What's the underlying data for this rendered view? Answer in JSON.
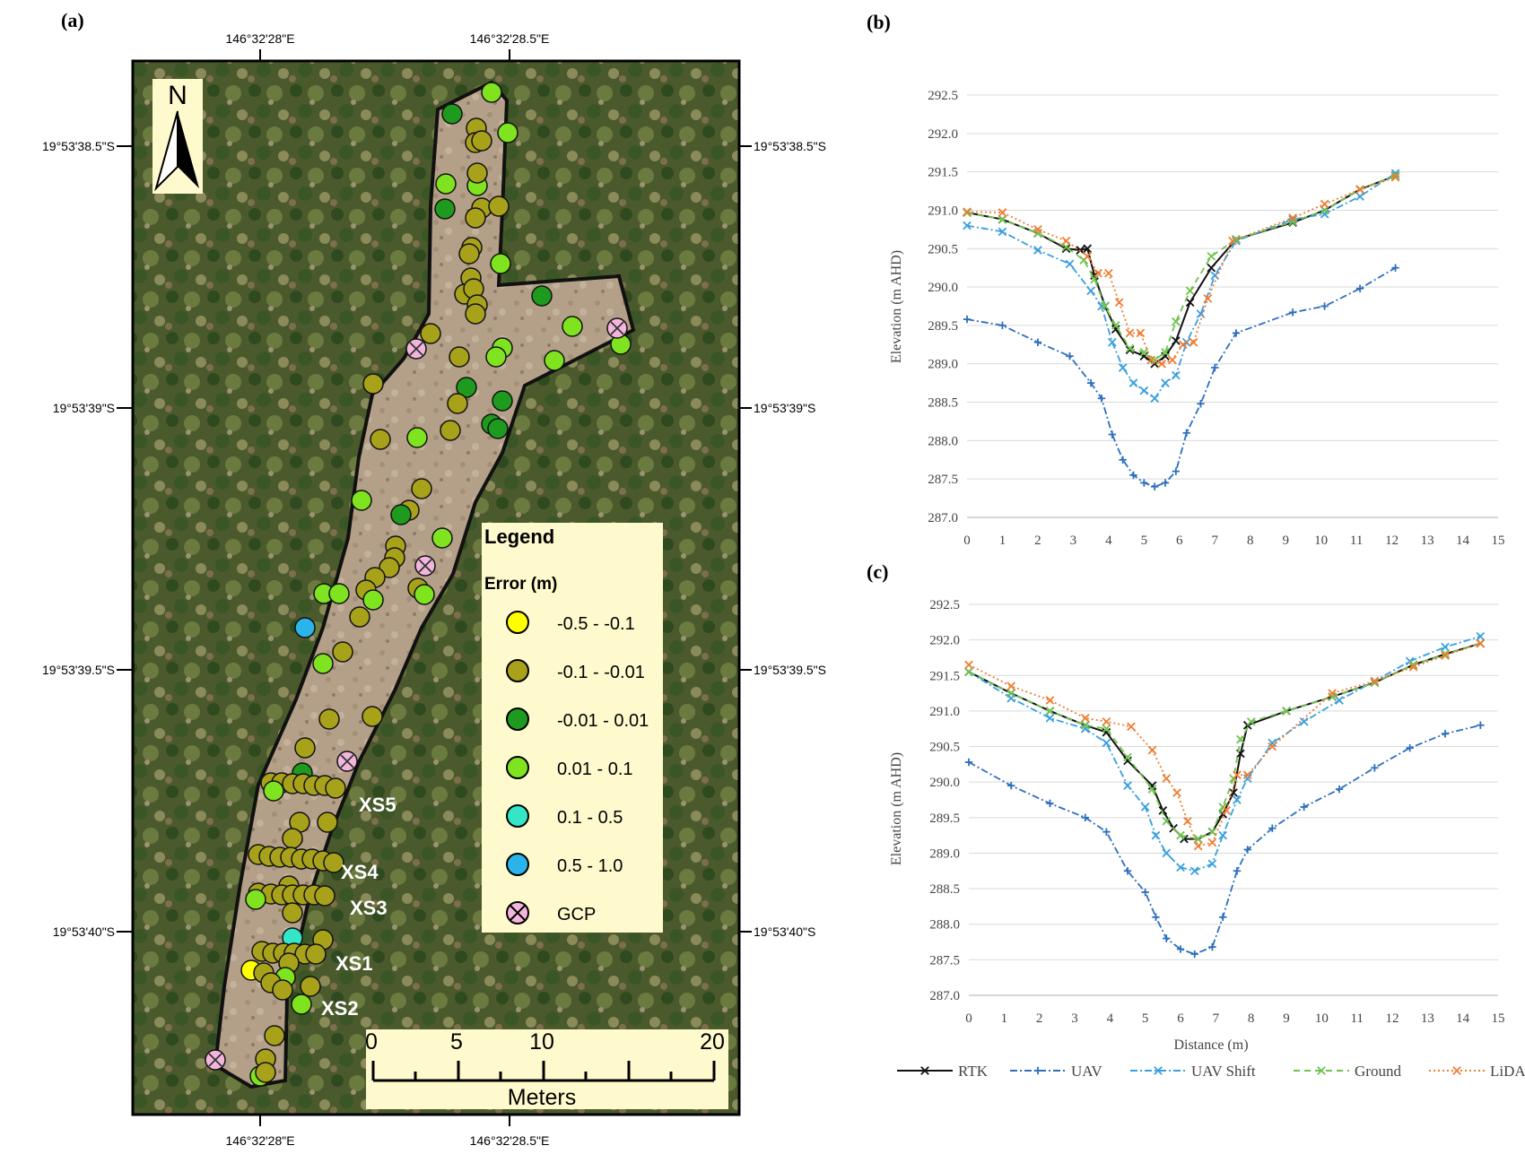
{
  "panels": {
    "a": "(a)",
    "b": "(b)",
    "c": "(c)"
  },
  "map": {
    "lon_labels": [
      "146°32'28\"E",
      "146°32'28.5\"E"
    ],
    "lat_labels": [
      "19°53'38.5\"S",
      "19°53'39\"S",
      "19°53'39.5\"S",
      "19°53'40\"S"
    ],
    "north": "N",
    "cross_sections": [
      "XS5",
      "XS4",
      "XS3",
      "XS1",
      "XS2"
    ],
    "legend": {
      "title": "Legend",
      "subtitle": "Error (m)",
      "items": [
        {
          "label": "-0.5 - -0.1",
          "color": "#ffff00"
        },
        {
          "label": "-0.1 - -0.01",
          "color": "#a8a21a"
        },
        {
          "label": "-0.01 - 0.01",
          "color": "#1e9a1e"
        },
        {
          "label": "0.01 - 0.1",
          "color": "#7fe320"
        },
        {
          "label": "0.1 - 0.5",
          "color": "#33e6c8"
        },
        {
          "label": "0.5 - 1.0",
          "color": "#2ab4ea"
        },
        {
          "label": "GCP",
          "color": "#f2b6dc"
        }
      ]
    },
    "scalebar": {
      "ticks": [
        "0",
        "5",
        "10",
        "20"
      ],
      "unit": "Meters"
    }
  },
  "series_legend": [
    "RTK",
    "UAV",
    "UAV Shift",
    "Ground",
    "LiDAR"
  ],
  "chart_data": [
    {
      "type": "line",
      "panel": "(b)",
      "ylabel": "Elevation (m AHD)",
      "xlabel": "",
      "ylim": [
        287.0,
        292.5
      ],
      "xlim": [
        0,
        15
      ],
      "yticks": [
        "287.0",
        "287.5",
        "288.0",
        "288.5",
        "289.0",
        "289.5",
        "290.0",
        "290.5",
        "291.0",
        "291.5",
        "292.0",
        "292.5"
      ],
      "xticks": [
        "0",
        "1",
        "2",
        "3",
        "4",
        "5",
        "6",
        "7",
        "8",
        "9",
        "10",
        "11",
        "12",
        "13",
        "14",
        "15"
      ],
      "grid": true,
      "series": [
        {
          "name": "RTK",
          "color": "#111111",
          "dash": "",
          "marker": "x",
          "x": [
            0,
            1,
            2,
            2.8,
            3.2,
            3.4,
            3.6,
            3.9,
            4.2,
            4.6,
            5.0,
            5.3,
            5.6,
            5.9,
            6.3,
            6.9,
            7.6,
            9.2,
            10.1,
            11.1,
            12.1
          ],
          "y": [
            290.97,
            290.88,
            290.7,
            290.5,
            290.48,
            290.5,
            290.15,
            289.75,
            289.45,
            289.18,
            289.1,
            289.0,
            289.1,
            289.3,
            289.8,
            290.25,
            290.62,
            290.84,
            291.0,
            291.27,
            291.45
          ]
        },
        {
          "name": "UAV",
          "color": "#2c6fbf",
          "dash": "8 3 2 3",
          "marker": "+",
          "x": [
            0,
            1,
            2,
            2.9,
            3.5,
            3.8,
            4.1,
            4.4,
            4.7,
            5.0,
            5.3,
            5.6,
            5.9,
            6.2,
            6.6,
            7.0,
            7.6,
            9.2,
            10.1,
            11.1,
            12.1
          ],
          "y": [
            289.58,
            289.5,
            289.28,
            289.1,
            288.75,
            288.55,
            288.08,
            287.75,
            287.55,
            287.45,
            287.4,
            287.45,
            287.6,
            288.1,
            288.48,
            288.95,
            289.4,
            289.67,
            289.75,
            289.98,
            290.25
          ]
        },
        {
          "name": "UAV Shift",
          "color": "#3a9fdf",
          "dash": "8 3 2 3",
          "marker": "x",
          "x": [
            0,
            1,
            2,
            2.9,
            3.5,
            3.8,
            4.1,
            4.4,
            4.7,
            5.0,
            5.3,
            5.6,
            5.9,
            6.2,
            6.6,
            7.0,
            7.6,
            9.2,
            10.1,
            11.1,
            12.1
          ],
          "y": [
            290.8,
            290.72,
            290.48,
            290.3,
            289.95,
            289.75,
            289.28,
            288.95,
            288.75,
            288.65,
            288.55,
            288.75,
            288.85,
            289.28,
            289.65,
            290.15,
            290.6,
            290.88,
            290.95,
            291.18,
            291.48
          ]
        },
        {
          "name": "Ground",
          "color": "#6fc34f",
          "dash": "7 5",
          "marker": "x",
          "x": [
            0,
            1,
            2,
            2.8,
            3.3,
            3.6,
            3.9,
            4.2,
            4.6,
            5.0,
            5.3,
            5.6,
            5.9,
            6.3,
            6.9,
            7.6,
            9.2,
            10.1,
            11.1,
            12.1
          ],
          "y": [
            290.97,
            290.88,
            290.7,
            290.52,
            290.35,
            290.1,
            289.75,
            289.5,
            289.2,
            289.15,
            289.05,
            289.15,
            289.55,
            289.95,
            290.4,
            290.62,
            290.85,
            291.0,
            291.27,
            291.45
          ]
        },
        {
          "name": "LiDAR",
          "color": "#ef7d32",
          "dash": "2 3",
          "marker": "x",
          "x": [
            0,
            1,
            2,
            2.8,
            3.4,
            3.7,
            4.0,
            4.3,
            4.6,
            4.9,
            5.2,
            5.5,
            5.8,
            6.1,
            6.4,
            6.8,
            7.5,
            9.2,
            10.1,
            11.1,
            12.1
          ],
          "y": [
            290.98,
            290.97,
            290.75,
            290.6,
            290.4,
            290.18,
            290.18,
            289.8,
            289.4,
            289.4,
            289.05,
            289.0,
            289.05,
            289.25,
            289.28,
            289.85,
            290.6,
            290.9,
            291.08,
            291.27,
            291.43
          ]
        }
      ]
    },
    {
      "type": "line",
      "panel": "(c)",
      "ylabel": "Elevation (m AHD)",
      "xlabel": "Distance (m)",
      "ylim": [
        287.0,
        292.5
      ],
      "xlim": [
        0,
        15
      ],
      "yticks": [
        "287.0",
        "287.5",
        "288.0",
        "288.5",
        "289.0",
        "289.5",
        "290.0",
        "290.5",
        "291.0",
        "291.5",
        "292.0",
        "292.5"
      ],
      "xticks": [
        "0",
        "1",
        "2",
        "3",
        "4",
        "5",
        "6",
        "7",
        "8",
        "9",
        "10",
        "11",
        "12",
        "13",
        "14",
        "15"
      ],
      "grid": true,
      "series": [
        {
          "name": "RTK",
          "color": "#111111",
          "dash": "",
          "marker": "x",
          "x": [
            0,
            1.2,
            2.3,
            3.3,
            3.9,
            4.5,
            5.2,
            5.5,
            5.8,
            6.1,
            6.5,
            6.9,
            7.2,
            7.5,
            7.7,
            7.9,
            9.0,
            10.3,
            11.5,
            12.6,
            13.5,
            14.5
          ],
          "y": [
            291.55,
            291.25,
            291.0,
            290.8,
            290.7,
            290.3,
            289.95,
            289.6,
            289.35,
            289.2,
            289.2,
            289.3,
            289.55,
            289.85,
            290.4,
            290.8,
            291.0,
            291.2,
            291.4,
            291.65,
            291.8,
            291.95
          ]
        },
        {
          "name": "UAV",
          "color": "#2c6fbf",
          "dash": "8 3 2 3",
          "marker": "+",
          "x": [
            0,
            1.2,
            2.3,
            3.3,
            3.9,
            4.5,
            5.0,
            5.3,
            5.6,
            6.0,
            6.4,
            6.9,
            7.2,
            7.6,
            7.9,
            8.6,
            9.5,
            10.5,
            11.5,
            12.5,
            13.5,
            14.5
          ],
          "y": [
            290.28,
            289.95,
            289.7,
            289.5,
            289.3,
            288.75,
            288.45,
            288.1,
            287.8,
            287.65,
            287.58,
            287.68,
            288.1,
            288.75,
            289.05,
            289.35,
            289.65,
            289.9,
            290.2,
            290.48,
            290.68,
            290.8
          ]
        },
        {
          "name": "UAV Shift",
          "color": "#3a9fdf",
          "dash": "8 3 2 3",
          "marker": "x",
          "x": [
            0,
            1.2,
            2.3,
            3.3,
            3.9,
            4.5,
            5.0,
            5.3,
            5.6,
            6.0,
            6.4,
            6.9,
            7.2,
            7.6,
            7.9,
            8.6,
            9.5,
            10.5,
            11.5,
            12.5,
            13.5,
            14.5
          ],
          "y": [
            291.55,
            291.18,
            290.9,
            290.75,
            290.55,
            289.95,
            289.65,
            289.25,
            289.0,
            288.8,
            288.75,
            288.85,
            289.25,
            289.75,
            290.05,
            290.55,
            290.85,
            291.15,
            291.42,
            291.7,
            291.9,
            292.05
          ]
        },
        {
          "name": "Ground",
          "color": "#6fc34f",
          "dash": "7 5",
          "marker": "x",
          "x": [
            0,
            1.2,
            2.3,
            3.3,
            3.9,
            4.5,
            5.2,
            5.6,
            6.0,
            6.5,
            6.9,
            7.2,
            7.5,
            7.7,
            8.0,
            9.0,
            10.3,
            11.5,
            12.6,
            13.5,
            14.5
          ],
          "y": [
            291.55,
            291.25,
            291.0,
            290.8,
            290.75,
            290.35,
            289.9,
            289.45,
            289.25,
            289.2,
            289.3,
            289.65,
            290.05,
            290.6,
            290.85,
            291.0,
            291.2,
            291.4,
            291.65,
            291.8,
            291.95
          ]
        },
        {
          "name": "LiDAR",
          "color": "#ef7d32",
          "dash": "2 3",
          "marker": "x",
          "x": [
            0,
            1.2,
            2.3,
            3.3,
            3.9,
            4.6,
            5.2,
            5.6,
            5.9,
            6.2,
            6.5,
            6.9,
            7.3,
            7.6,
            7.9,
            8.6,
            10.3,
            11.5,
            12.6,
            13.5,
            14.5
          ],
          "y": [
            291.65,
            291.35,
            291.15,
            290.9,
            290.85,
            290.78,
            290.45,
            290.05,
            289.85,
            289.45,
            289.1,
            289.15,
            289.6,
            290.1,
            290.1,
            290.5,
            291.25,
            291.42,
            291.62,
            291.78,
            291.95
          ]
        }
      ]
    }
  ]
}
